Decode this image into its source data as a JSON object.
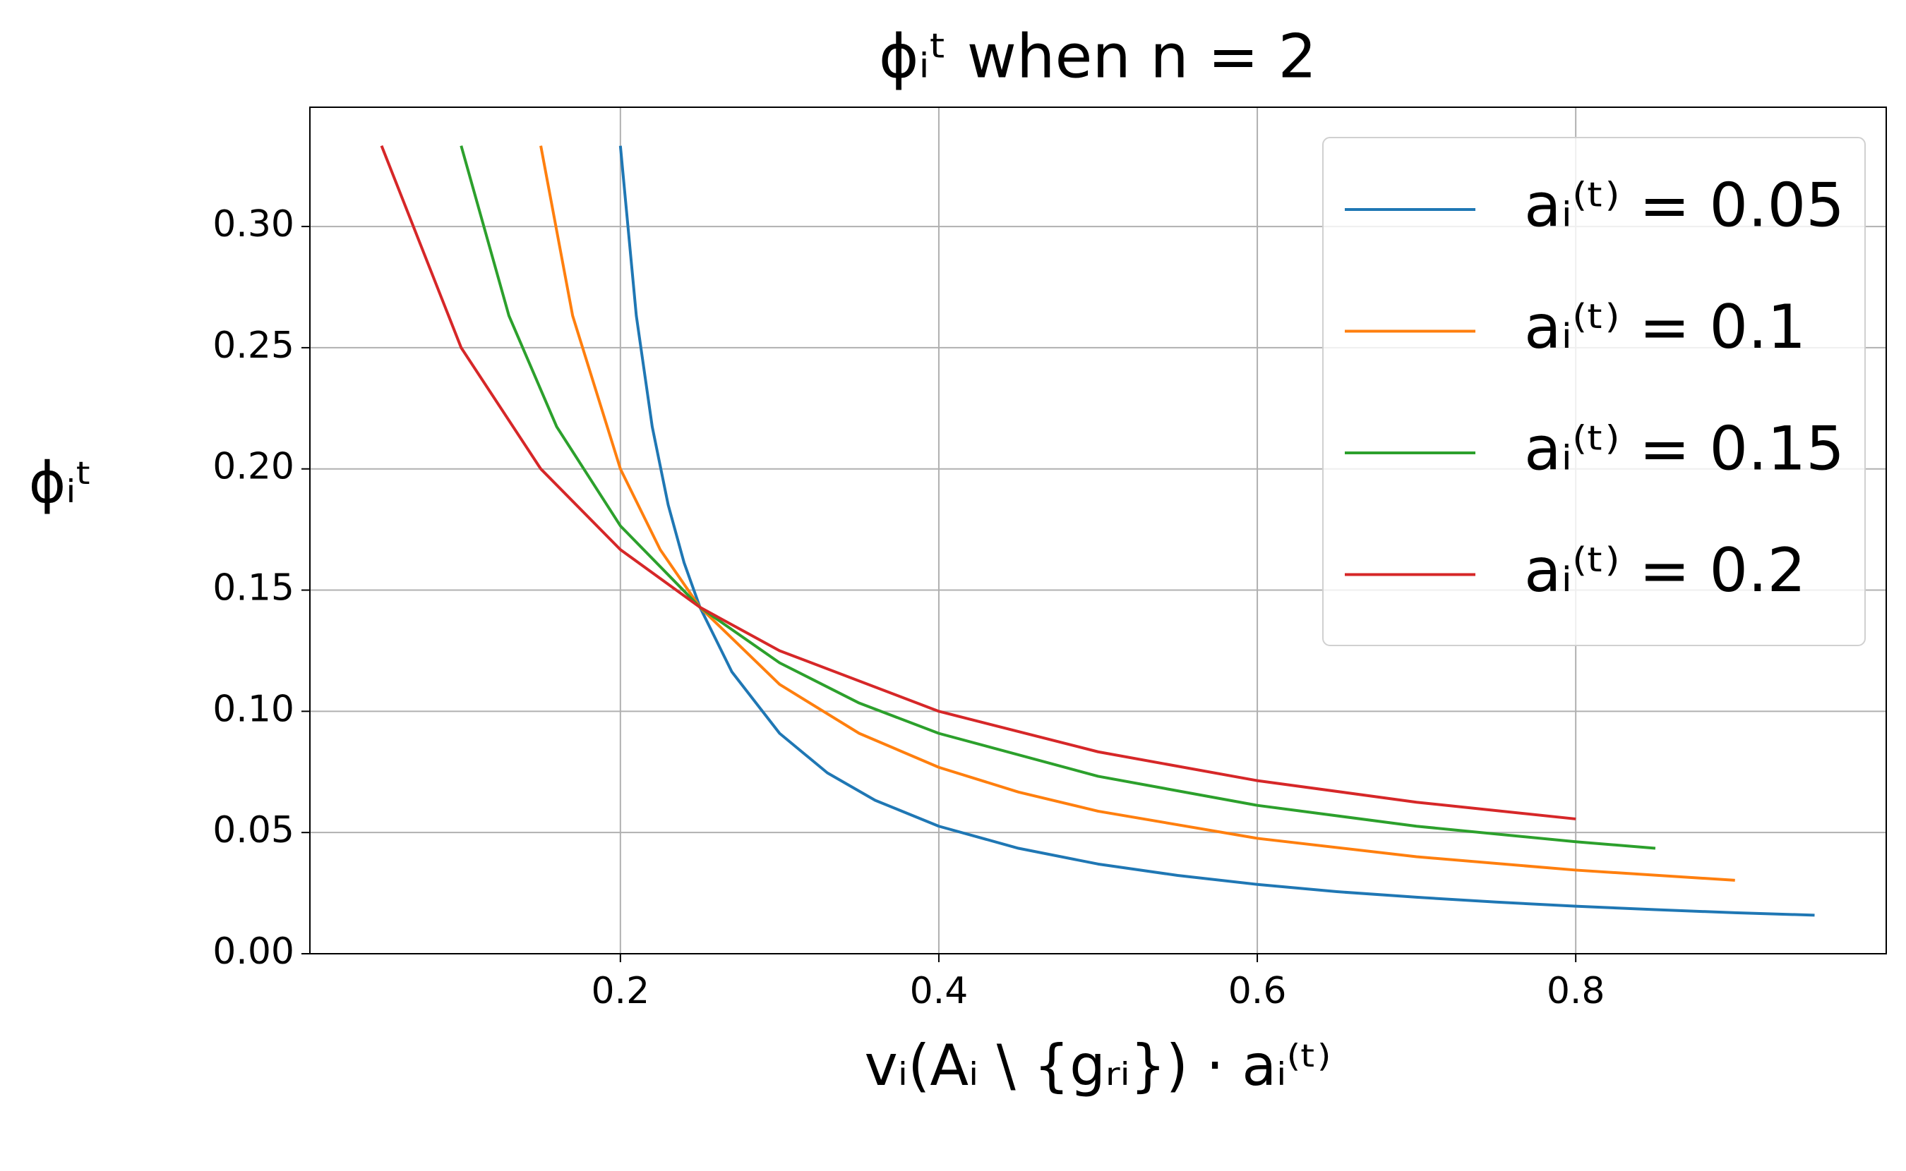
{
  "chart_data": {
    "type": "line",
    "title": "ϕᵢᵗ when n = 2",
    "xlabel": "vᵢ(Aᵢ \\ {gᵣᵢ}) · aᵢ⁽ᵗ⁾",
    "ylabel": "ϕᵢᵗ",
    "xlim": [
      0.005,
      0.995
    ],
    "xticks": [
      0.2,
      0.4,
      0.6,
      0.8
    ],
    "ylim": [
      0,
      0.3492
    ],
    "yticks": [
      {
        "value": 0,
        "label": "0.00"
      },
      {
        "value": 0.05,
        "label": "0.05"
      },
      {
        "value": 0.1,
        "label": "0.10"
      },
      {
        "value": 0.15,
        "label": "0.15"
      },
      {
        "value": 0.2,
        "label": "0.20"
      },
      {
        "value": 0.25,
        "label": "0.25"
      },
      {
        "value": 0.3,
        "label": "0.30"
      }
    ],
    "grid": true,
    "legend": "upper right",
    "series": [
      {
        "name": "aᵢ⁽ᵗ⁾ = 0.05",
        "color": "#1f77b4",
        "x": [
          0.2,
          0.21,
          0.22,
          0.23,
          0.24,
          0.25,
          0.27,
          0.3,
          0.33,
          0.36,
          0.4,
          0.45,
          0.5,
          0.55,
          0.6,
          0.65,
          0.7,
          0.75,
          0.8,
          0.85,
          0.9,
          0.95
        ],
        "values": [
          0.3333,
          0.2632,
          0.2174,
          0.1852,
          0.1613,
          0.1429,
          0.1163,
          0.0909,
          0.0746,
          0.0633,
          0.0526,
          0.0435,
          0.037,
          0.0323,
          0.0286,
          0.0256,
          0.0233,
          0.0213,
          0.0196,
          0.0182,
          0.0169,
          0.0159
        ]
      },
      {
        "name": "aᵢ⁽ᵗ⁾ = 0.1",
        "color": "#ff7f0e",
        "x": [
          0.15,
          0.17,
          0.2,
          0.225,
          0.25,
          0.3,
          0.35,
          0.4,
          0.45,
          0.5,
          0.6,
          0.7,
          0.8,
          0.9
        ],
        "values": [
          0.3333,
          0.2632,
          0.2,
          0.1667,
          0.1429,
          0.1111,
          0.0909,
          0.0769,
          0.0667,
          0.0588,
          0.0476,
          0.04,
          0.0345,
          0.0303
        ]
      },
      {
        "name": "aᵢ⁽ᵗ⁾ = 0.15",
        "color": "#2ca02c",
        "x": [
          0.1,
          0.13,
          0.16,
          0.2,
          0.25,
          0.3,
          0.35,
          0.4,
          0.5,
          0.6,
          0.7,
          0.8,
          0.85
        ],
        "values": [
          0.3333,
          0.2632,
          0.2174,
          0.1765,
          0.1429,
          0.12,
          0.1034,
          0.0909,
          0.0732,
          0.0612,
          0.0526,
          0.0462,
          0.0435
        ]
      },
      {
        "name": "aᵢ⁽ᵗ⁾ = 0.2",
        "color": "#d62728",
        "x": [
          0.05,
          0.1,
          0.15,
          0.2,
          0.25,
          0.3,
          0.4,
          0.5,
          0.6,
          0.7,
          0.8
        ],
        "values": [
          0.3333,
          0.25,
          0.2,
          0.1667,
          0.1429,
          0.125,
          0.1,
          0.0833,
          0.0714,
          0.0625,
          0.0556
        ]
      }
    ]
  }
}
